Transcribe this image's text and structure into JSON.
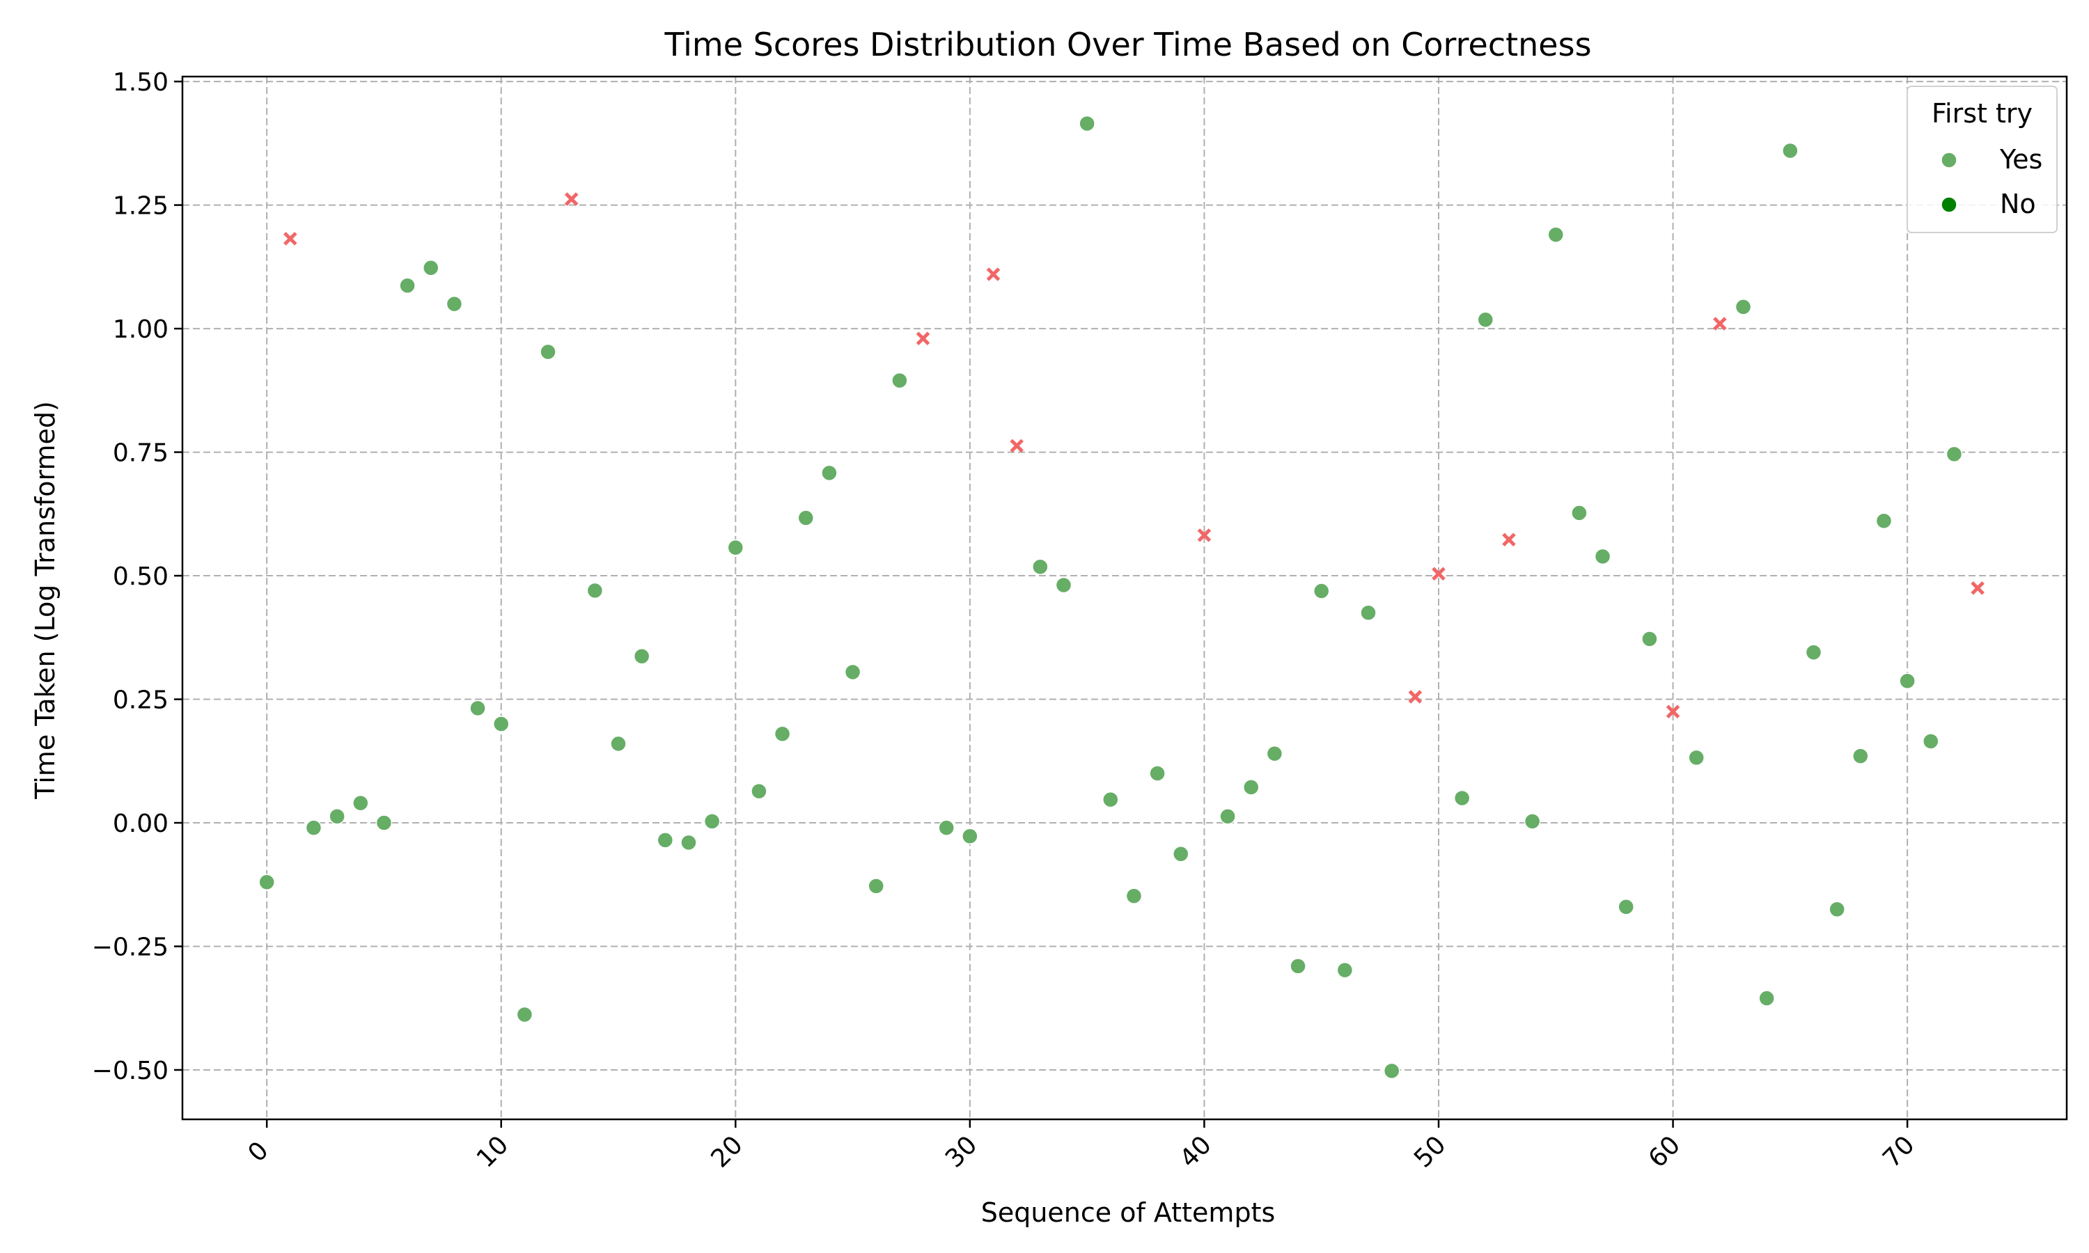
{
  "chart_data": {
    "type": "scatter",
    "title": "Time Scores Distribution Over Time Based on Correctness",
    "xlabel": "Sequence of Attempts",
    "ylabel": "Time Taken (Log Transformed)",
    "xlim": [
      -3.6,
      76.8
    ],
    "ylim": [
      -0.6,
      1.51
    ],
    "xticks": [
      0,
      10,
      20,
      30,
      40,
      50,
      60,
      70
    ],
    "xtick_labels": [
      "0",
      "10",
      "20",
      "30",
      "40",
      "50",
      "60",
      "70"
    ],
    "xtick_rotation": 45,
    "yticks": [
      -0.5,
      -0.25,
      0.0,
      0.25,
      0.5,
      0.75,
      1.0,
      1.25,
      1.5
    ],
    "ytick_labels": [
      "−0.50",
      "−0.25",
      "0.00",
      "0.25",
      "0.50",
      "0.75",
      "1.00",
      "1.25",
      "1.50"
    ],
    "grid": true,
    "legend": {
      "title": "First try",
      "placement": "top-right",
      "entries": [
        {
          "label": "Yes",
          "color": "#66ad66",
          "marker": "circle"
        },
        {
          "label": "No",
          "color": "#008000",
          "marker": "circle"
        }
      ]
    },
    "colors": {
      "correct": "#66ad66",
      "incorrect": "#f26666",
      "axis": "#000000",
      "grid": "#b0b0b0"
    },
    "series": [
      {
        "marker": "circle",
        "color": "#66ad66",
        "points": [
          [
            0,
            -0.12
          ],
          [
            2,
            -0.01
          ],
          [
            3,
            0.013
          ],
          [
            4,
            0.04
          ],
          [
            5,
            0.0
          ],
          [
            6,
            1.087
          ],
          [
            7,
            1.123
          ],
          [
            8,
            1.05
          ],
          [
            9,
            0.232
          ],
          [
            10,
            0.2
          ],
          [
            11,
            -0.388
          ],
          [
            12,
            0.953
          ],
          [
            14,
            0.47
          ],
          [
            15,
            0.16
          ],
          [
            16,
            0.337
          ],
          [
            17,
            -0.035
          ],
          [
            18,
            -0.04
          ],
          [
            19,
            0.003
          ],
          [
            20,
            0.557
          ],
          [
            21,
            0.064
          ],
          [
            22,
            0.18
          ],
          [
            23,
            0.617
          ],
          [
            24,
            0.708
          ],
          [
            25,
            0.305
          ],
          [
            26,
            -0.128
          ],
          [
            27,
            0.895
          ],
          [
            29,
            -0.01
          ],
          [
            30,
            -0.027
          ],
          [
            33,
            0.518
          ],
          [
            34,
            0.481
          ],
          [
            35,
            1.415
          ],
          [
            36,
            0.047
          ],
          [
            37,
            -0.148
          ],
          [
            38,
            0.1
          ],
          [
            39,
            -0.063
          ],
          [
            41,
            0.013
          ],
          [
            42,
            0.072
          ],
          [
            43,
            0.14
          ],
          [
            44,
            -0.29
          ],
          [
            45,
            0.469
          ],
          [
            46,
            -0.298
          ],
          [
            47,
            0.425
          ],
          [
            48,
            -0.502
          ],
          [
            51,
            0.05
          ],
          [
            52,
            1.018
          ],
          [
            54,
            0.003
          ],
          [
            55,
            1.19
          ],
          [
            56,
            0.627
          ],
          [
            57,
            0.539
          ],
          [
            58,
            -0.17
          ],
          [
            59,
            0.372
          ],
          [
            61,
            0.132
          ],
          [
            63,
            1.044
          ],
          [
            64,
            -0.355
          ],
          [
            65,
            1.36
          ],
          [
            66,
            0.345
          ],
          [
            67,
            -0.175
          ],
          [
            68,
            0.135
          ],
          [
            69,
            0.611
          ],
          [
            70,
            0.287
          ],
          [
            71,
            0.165
          ],
          [
            72,
            0.746
          ]
        ]
      },
      {
        "marker": "x",
        "color": "#f26666",
        "points": [
          [
            1,
            1.182
          ],
          [
            13,
            1.262
          ],
          [
            28,
            0.98
          ],
          [
            31,
            1.11
          ],
          [
            32,
            0.763
          ],
          [
            40,
            0.582
          ],
          [
            49,
            0.255
          ],
          [
            50,
            0.504
          ],
          [
            53,
            0.573
          ],
          [
            60,
            0.225
          ],
          [
            62,
            1.01
          ],
          [
            73,
            0.475
          ]
        ]
      }
    ]
  }
}
